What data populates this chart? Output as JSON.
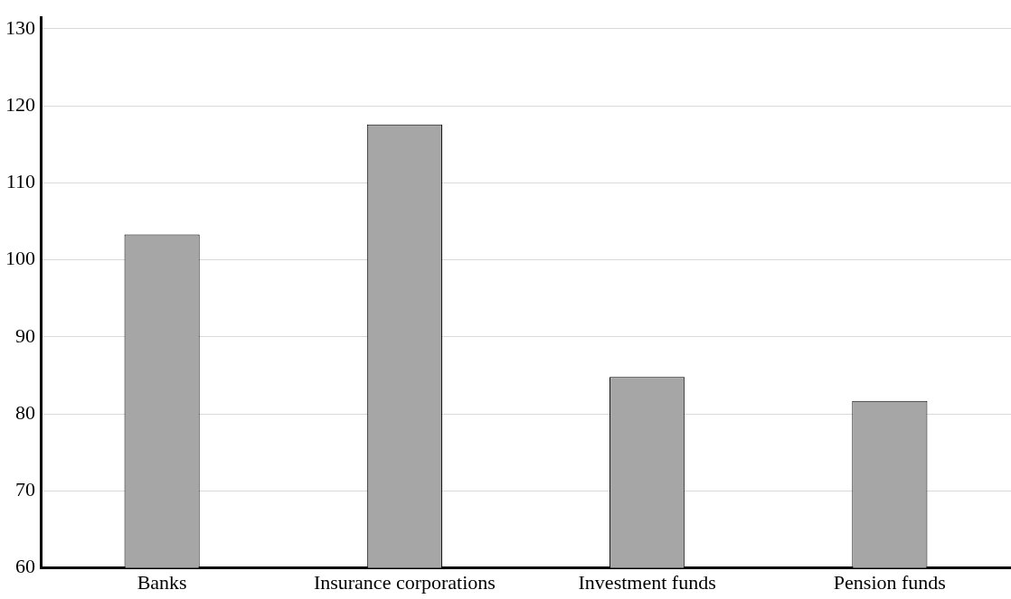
{
  "chart_data": {
    "type": "bar",
    "categories": [
      "Banks",
      "Insurance corporations",
      "Investment funds",
      "Pension funds"
    ],
    "values": [
      103.3,
      117.6,
      84.8,
      81.7
    ],
    "color": "#a6a6a6",
    "ylim": [
      60,
      131.5
    ],
    "yticks": [
      60,
      70,
      80,
      90,
      100,
      110,
      120,
      130
    ],
    "grid": "y",
    "legend": false
  }
}
